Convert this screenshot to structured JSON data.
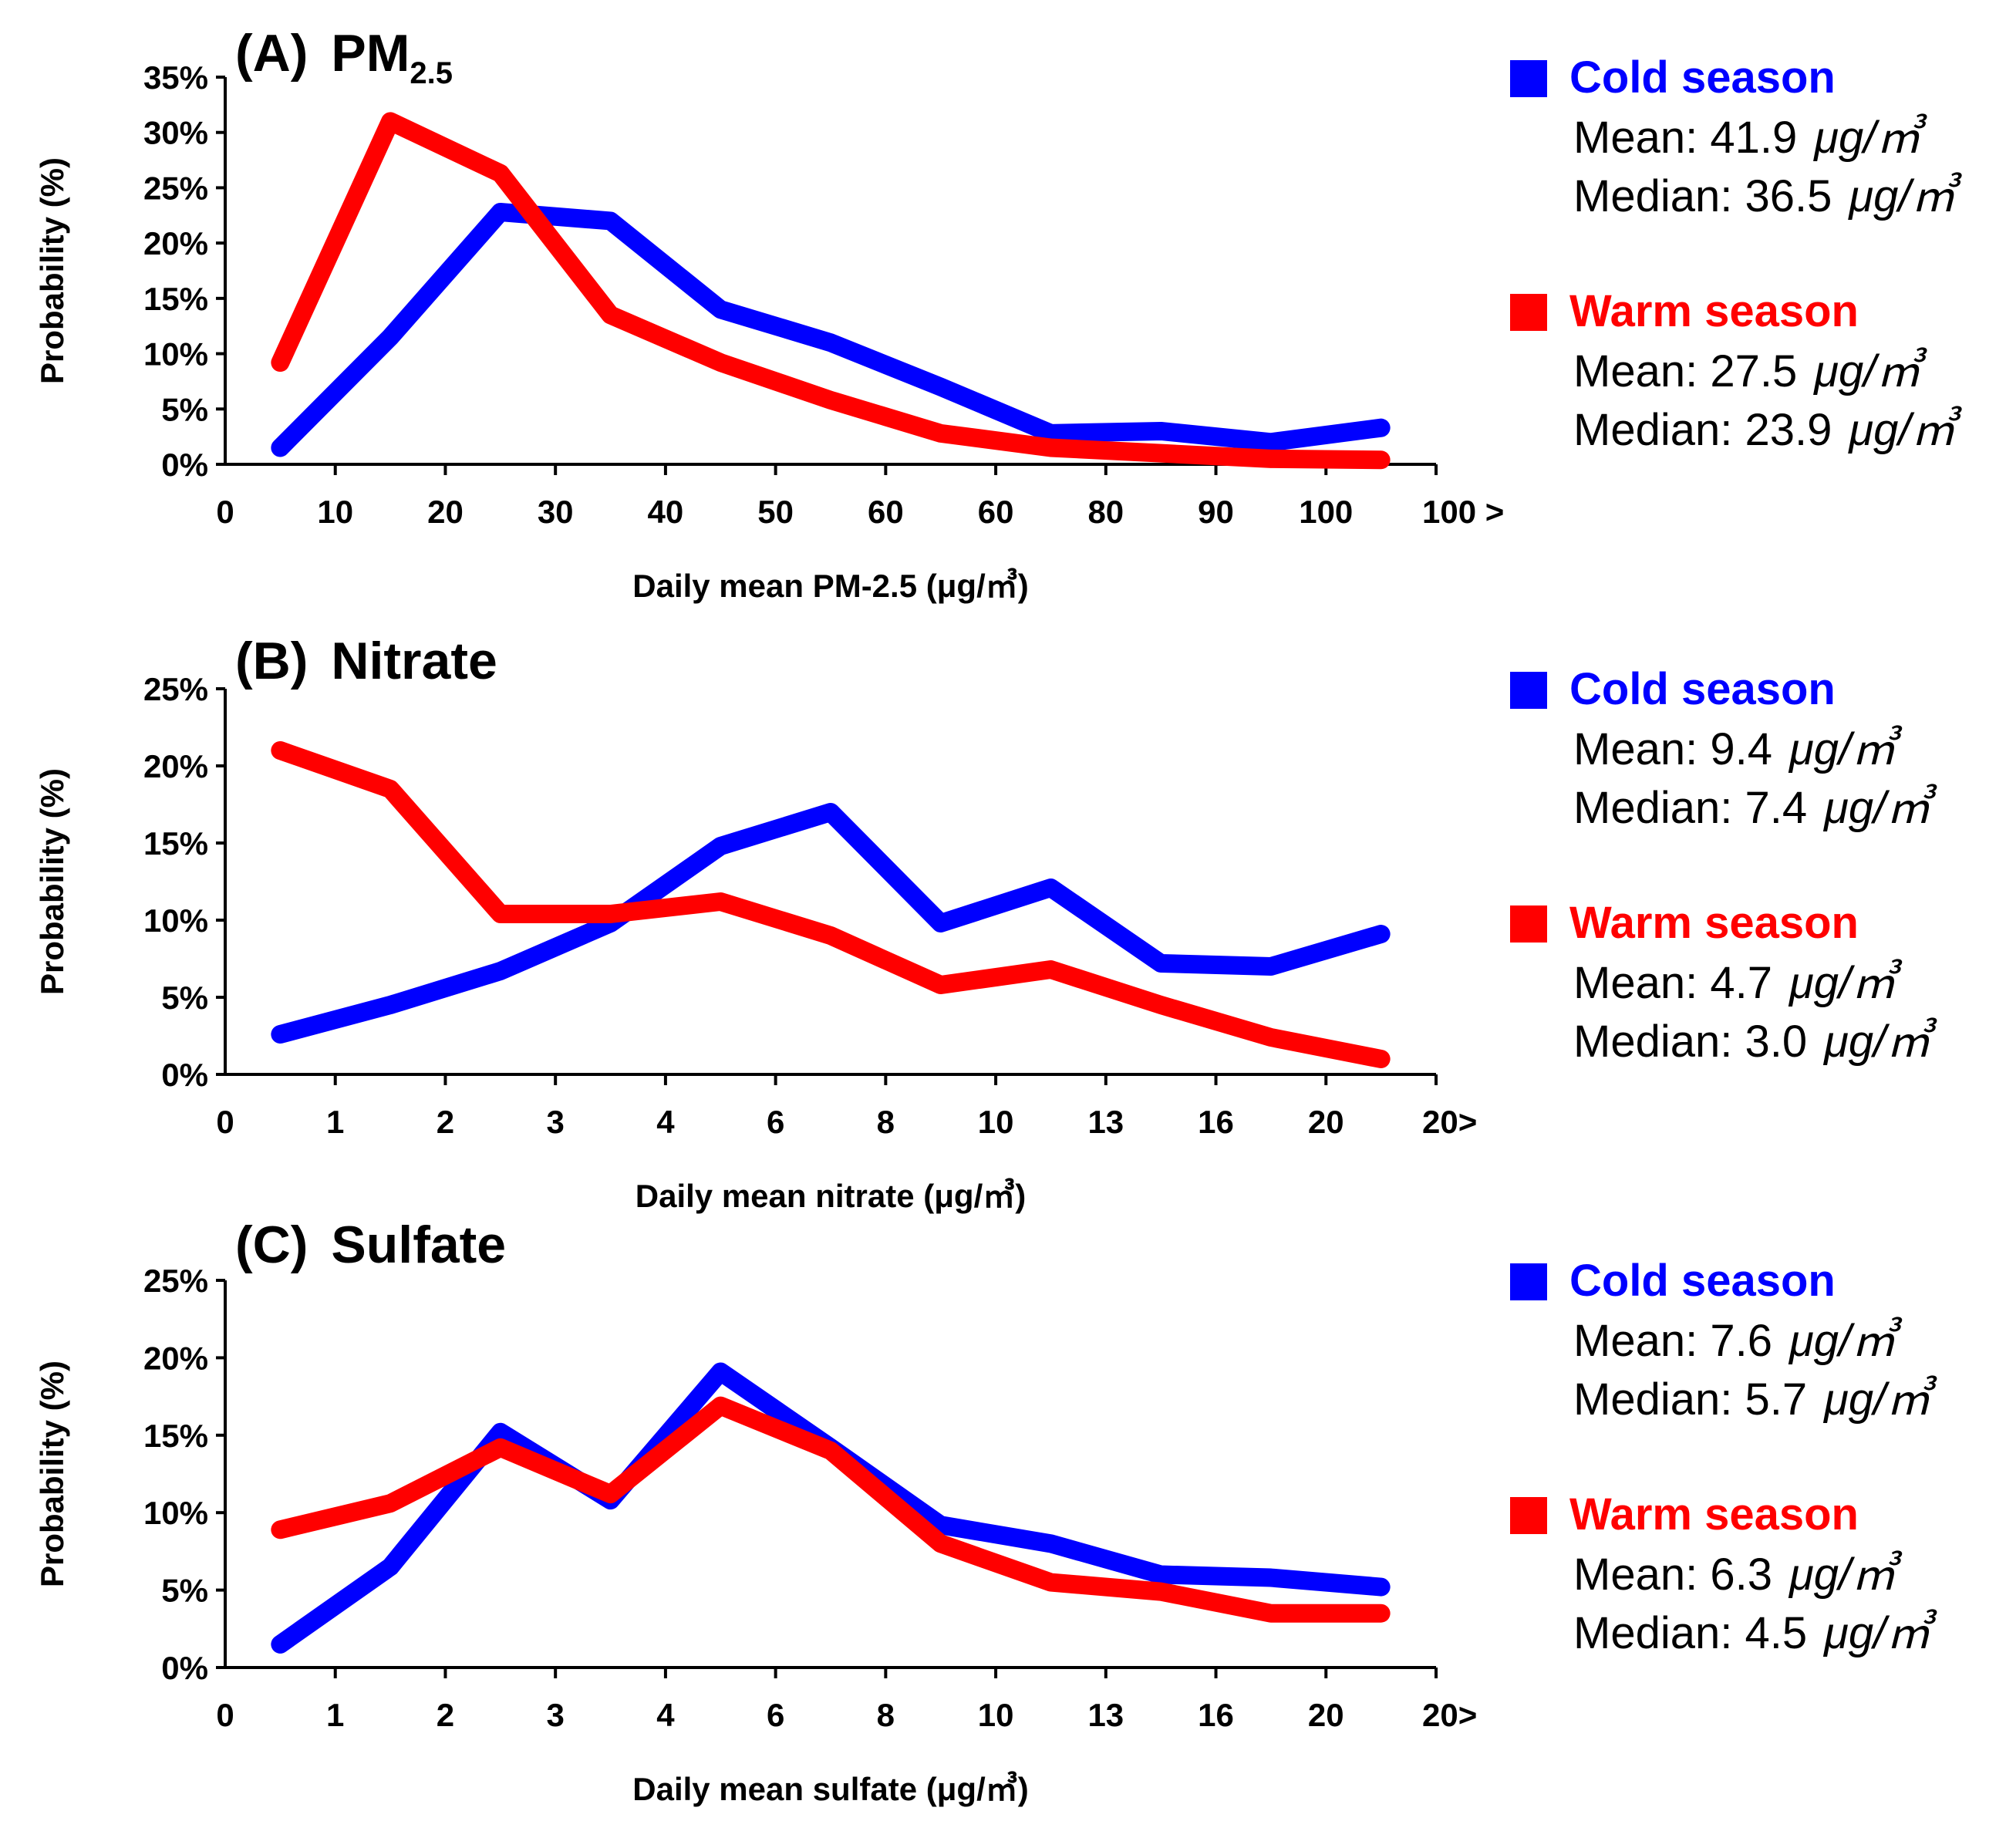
{
  "colors": {
    "cold": "#0000ff",
    "warm": "#ff0000",
    "axis": "#000000"
  },
  "chart_data": [
    {
      "type": "line",
      "panel_letter": "(A)",
      "title": "PM",
      "title_subscript": "2.5",
      "xlabel": "Daily mean PM-2.5 (μg/㎥)",
      "ylabel": "Probability (%)",
      "ylim": [
        0,
        35
      ],
      "yticks": [
        "0%",
        "5%",
        "10%",
        "15%",
        "20%",
        "25%",
        "30%",
        "35%"
      ],
      "x_tick_labels": [
        "0",
        "10",
        "20",
        "30",
        "40",
        "50",
        "60",
        "60",
        "80",
        "90",
        "100",
        "100 >"
      ],
      "series": [
        {
          "name": "Cold season",
          "key": "cold",
          "values": [
            1.5,
            11.5,
            22.8,
            22.0,
            14.0,
            11.0,
            7.0,
            2.8,
            3.0,
            2.0,
            3.3
          ],
          "stats": [
            {
              "label": "Mean",
              "value": "41.9",
              "unit": "μg/㎥"
            },
            {
              "label": "Median",
              "value": "36.5",
              "unit": "μg/㎥"
            }
          ]
        },
        {
          "name": "Warm season",
          "key": "warm",
          "values": [
            9.2,
            31.0,
            26.3,
            13.5,
            9.2,
            5.8,
            2.8,
            1.5,
            1.0,
            0.5,
            0.4
          ],
          "stats": [
            {
              "label": "Mean",
              "value": "27.5",
              "unit": "μg/㎥"
            },
            {
              "label": "Median",
              "value": "23.9",
              "unit": "μg/㎥"
            }
          ]
        }
      ]
    },
    {
      "type": "line",
      "panel_letter": "(B)",
      "title": "Nitrate",
      "title_subscript": "",
      "xlabel": "Daily mean nitrate (μg/㎥)",
      "ylabel": "Probability (%)",
      "ylim": [
        0,
        25
      ],
      "yticks": [
        "0%",
        "5%",
        "10%",
        "15%",
        "20%",
        "25%"
      ],
      "x_tick_labels": [
        "0",
        "1",
        "2",
        "3",
        "4",
        "6",
        "8",
        "10",
        "13",
        "16",
        "20",
        "20>"
      ],
      "series": [
        {
          "name": "Cold season",
          "key": "cold",
          "values": [
            2.6,
            4.5,
            6.7,
            9.8,
            14.8,
            17.0,
            9.8,
            12.1,
            7.2,
            7.0,
            9.1
          ],
          "stats": [
            {
              "label": "Mean",
              "value": "9.4",
              "unit": "μg/㎥"
            },
            {
              "label": "Median",
              "value": "7.4",
              "unit": "μg/㎥"
            }
          ]
        },
        {
          "name": "Warm season",
          "key": "warm",
          "values": [
            21.0,
            18.5,
            10.4,
            10.4,
            11.2,
            9.0,
            5.8,
            6.8,
            4.5,
            2.4,
            1.0
          ],
          "stats": [
            {
              "label": "Mean",
              "value": "4.7",
              "unit": "μg/㎥"
            },
            {
              "label": "Median",
              "value": "3.0",
              "unit": "μg/㎥"
            }
          ]
        }
      ]
    },
    {
      "type": "line",
      "panel_letter": "(C)",
      "title": "Sulfate",
      "title_subscript": "",
      "xlabel": "Daily mean sulfate (μg/㎥)",
      "ylabel": "Probability (%)",
      "ylim": [
        0,
        25
      ],
      "yticks": [
        "0%",
        "5%",
        "10%",
        "15%",
        "20%",
        "25%"
      ],
      "x_tick_labels": [
        "0",
        "1",
        "2",
        "3",
        "4",
        "6",
        "8",
        "10",
        "13",
        "16",
        "20",
        "20>"
      ],
      "series": [
        {
          "name": "Cold season",
          "key": "cold",
          "values": [
            1.5,
            6.5,
            15.2,
            10.8,
            19.1,
            14.2,
            9.2,
            8.0,
            6.0,
            5.8,
            5.2
          ],
          "stats": [
            {
              "label": "Mean",
              "value": "7.6",
              "unit": "μg/㎥"
            },
            {
              "label": "Median",
              "value": "5.7",
              "unit": "μg/㎥"
            }
          ]
        },
        {
          "name": "Warm season",
          "key": "warm",
          "values": [
            8.9,
            10.6,
            14.2,
            11.2,
            16.9,
            14.0,
            8.0,
            5.5,
            4.9,
            3.5,
            3.5
          ],
          "stats": [
            {
              "label": "Mean",
              "value": "6.3",
              "unit": "μg/㎥"
            },
            {
              "label": "Median",
              "value": "4.5",
              "unit": "μg/㎥"
            }
          ]
        }
      ]
    }
  ]
}
